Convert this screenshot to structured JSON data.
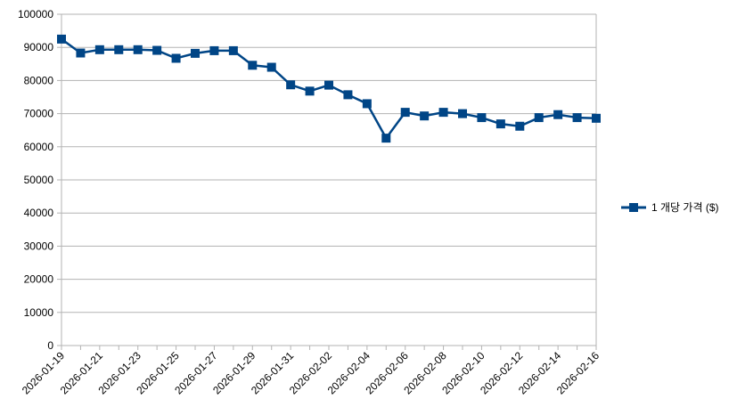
{
  "chart_data": {
    "type": "line",
    "title": "",
    "xlabel": "",
    "ylabel": "",
    "ylim": [
      0,
      100000
    ],
    "y_ticks": [
      "0",
      "10000",
      "20000",
      "30000",
      "40000",
      "50000",
      "60000",
      "70000",
      "80000",
      "90000",
      "100000"
    ],
    "x_tick_labels": [
      "2026-01-19",
      "2026-01-21",
      "2026-01-23",
      "2026-01-25",
      "2026-01-27",
      "2026-01-29",
      "2026-01-31",
      "2026-02-02",
      "2026-02-04",
      "2026-02-06",
      "2026-02-08",
      "2026-02-10",
      "2026-02-12",
      "2026-02-14",
      "2026-02-16"
    ],
    "x": [
      "2026-01-19",
      "2026-01-20",
      "2026-01-21",
      "2026-01-22",
      "2026-01-23",
      "2026-01-24",
      "2026-01-25",
      "2026-01-26",
      "2026-01-27",
      "2026-01-28",
      "2026-01-29",
      "2026-01-30",
      "2026-01-31",
      "2026-02-01",
      "2026-02-02",
      "2026-02-03",
      "2026-02-04",
      "2026-02-05",
      "2026-02-06",
      "2026-02-07",
      "2026-02-08",
      "2026-02-09",
      "2026-02-10",
      "2026-02-11",
      "2026-02-12",
      "2026-02-13",
      "2026-02-14",
      "2026-02-15",
      "2026-02-16"
    ],
    "series": [
      {
        "name": "1 개당 가격 ($)",
        "color": "#004586",
        "marker": "square",
        "values": [
          92500,
          88300,
          89300,
          89300,
          89300,
          89100,
          86700,
          88200,
          89000,
          89000,
          84600,
          84000,
          78700,
          76800,
          78600,
          75700,
          73000,
          62600,
          70400,
          69300,
          70400,
          70000,
          68800,
          66900,
          66200,
          68800,
          69700,
          68800,
          68600
        ]
      }
    ],
    "grid": "horizontal",
    "legend_position": "right"
  }
}
